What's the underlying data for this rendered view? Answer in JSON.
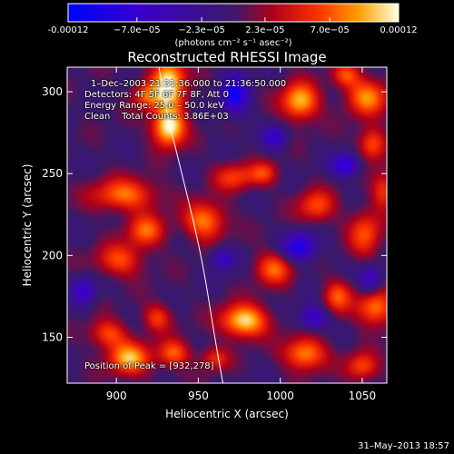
{
  "chart_data": {
    "type": "heatmap",
    "title": "Reconstructed RHESSI Image",
    "xlabel": "Heliocentric X (arcsec)",
    "ylabel": "Heliocentric Y (arcsec)",
    "xlim": [
      870,
      1065
    ],
    "ylim": [
      122,
      315
    ],
    "x_ticks": [
      900,
      950,
      1000,
      1050
    ],
    "y_ticks": [
      150,
      200,
      250,
      300
    ],
    "colorbar": {
      "range": [
        -0.00012,
        0.00012
      ],
      "ticks": [
        {
          "value": -0.00012,
          "label": "-0.00012"
        },
        {
          "value": -7e-05,
          "label": "−7.0e−05"
        },
        {
          "value": -2.3e-05,
          "label": "−2.3e−05"
        },
        {
          "value": 2.3e-05,
          "label": "2.3e−05"
        },
        {
          "value": 7e-05,
          "label": "7.0e−05"
        },
        {
          "value": 0.00012,
          "label": "0.00012"
        }
      ],
      "units_label": "(photons cm⁻² s⁻¹ asec⁻²)"
    },
    "annotations": {
      "time": "1–Dec–2003 21:31:36.000 to 21:36:50.000",
      "detectors": "Detectors: 4F 5F 6F 7F 8F, Att 0",
      "energy": "Energy Range: 25.0 – 50.0 keV",
      "clean": "Clean    Total Counts: 3.86E+03",
      "peak": "Position of Peak = [932,278]"
    },
    "peak": [
      932,
      278
    ],
    "limb_curve": [
      [
        926,
        315
      ],
      [
        930,
        290
      ],
      [
        940,
        250
      ],
      [
        952,
        200
      ],
      [
        960,
        150
      ],
      [
        965,
        122
      ]
    ],
    "blobs": [
      {
        "x": 932,
        "y": 305,
        "sx": 7,
        "sy": 12,
        "a": 1.0
      },
      {
        "x": 932,
        "y": 278,
        "sx": 7,
        "sy": 8,
        "a": 1.0
      },
      {
        "x": 918,
        "y": 298,
        "sx": 6,
        "sy": 6,
        "a": 0.55
      },
      {
        "x": 1012,
        "y": 294,
        "sx": 8,
        "sy": 8,
        "a": 0.85
      },
      {
        "x": 1053,
        "y": 297,
        "sx": 9,
        "sy": 8,
        "a": 0.7
      },
      {
        "x": 1056,
        "y": 268,
        "sx": 6,
        "sy": 7,
        "a": 0.6
      },
      {
        "x": 1040,
        "y": 310,
        "sx": 6,
        "sy": 5,
        "a": 0.5
      },
      {
        "x": 905,
        "y": 237,
        "sx": 14,
        "sy": 7,
        "a": 0.65
      },
      {
        "x": 972,
        "y": 248,
        "sx": 9,
        "sy": 6,
        "a": 0.5
      },
      {
        "x": 990,
        "y": 250,
        "sx": 6,
        "sy": 5,
        "a": 0.45
      },
      {
        "x": 918,
        "y": 215,
        "sx": 8,
        "sy": 7,
        "a": 0.6
      },
      {
        "x": 954,
        "y": 221,
        "sx": 9,
        "sy": 8,
        "a": 0.7
      },
      {
        "x": 1022,
        "y": 230,
        "sx": 8,
        "sy": 7,
        "a": 0.55
      },
      {
        "x": 996,
        "y": 192,
        "sx": 8,
        "sy": 7,
        "a": 0.6
      },
      {
        "x": 902,
        "y": 197,
        "sx": 10,
        "sy": 7,
        "a": 0.55
      },
      {
        "x": 1052,
        "y": 213,
        "sx": 7,
        "sy": 10,
        "a": 0.55
      },
      {
        "x": 1035,
        "y": 175,
        "sx": 6,
        "sy": 7,
        "a": 0.55
      },
      {
        "x": 978,
        "y": 160,
        "sx": 10,
        "sy": 7,
        "a": 0.95
      },
      {
        "x": 1058,
        "y": 168,
        "sx": 8,
        "sy": 8,
        "a": 0.7
      },
      {
        "x": 925,
        "y": 162,
        "sx": 6,
        "sy": 6,
        "a": 0.5
      },
      {
        "x": 895,
        "y": 152,
        "sx": 8,
        "sy": 6,
        "a": 0.55
      },
      {
        "x": 935,
        "y": 140,
        "sx": 7,
        "sy": 6,
        "a": 0.6
      },
      {
        "x": 908,
        "y": 137,
        "sx": 9,
        "sy": 7,
        "a": 0.8
      },
      {
        "x": 1015,
        "y": 140,
        "sx": 9,
        "sy": 7,
        "a": 0.75
      },
      {
        "x": 1050,
        "y": 132,
        "sx": 7,
        "sy": 6,
        "a": 0.55
      },
      {
        "x": 1063,
        "y": 240,
        "sx": 5,
        "sy": 8,
        "a": 0.5
      },
      {
        "x": 960,
        "y": 137,
        "sx": 6,
        "sy": 5,
        "a": 0.45
      }
    ],
    "dips": [
      {
        "x": 1012,
        "y": 205,
        "sx": 7,
        "sy": 6,
        "a": 0.8
      },
      {
        "x": 972,
        "y": 298,
        "sx": 6,
        "sy": 8,
        "a": 0.85
      },
      {
        "x": 1040,
        "y": 255,
        "sx": 6,
        "sy": 5,
        "a": 0.7
      },
      {
        "x": 1020,
        "y": 162,
        "sx": 6,
        "sy": 5,
        "a": 0.6
      },
      {
        "x": 1055,
        "y": 185,
        "sx": 5,
        "sy": 6,
        "a": 0.6
      },
      {
        "x": 965,
        "y": 198,
        "sx": 5,
        "sy": 5,
        "a": 0.55
      },
      {
        "x": 880,
        "y": 178,
        "sx": 5,
        "sy": 6,
        "a": 0.55
      },
      {
        "x": 997,
        "y": 272,
        "sx": 5,
        "sy": 5,
        "a": 0.55
      }
    ]
  },
  "footer": {
    "timestamp": "31–May–2013 18:57"
  }
}
